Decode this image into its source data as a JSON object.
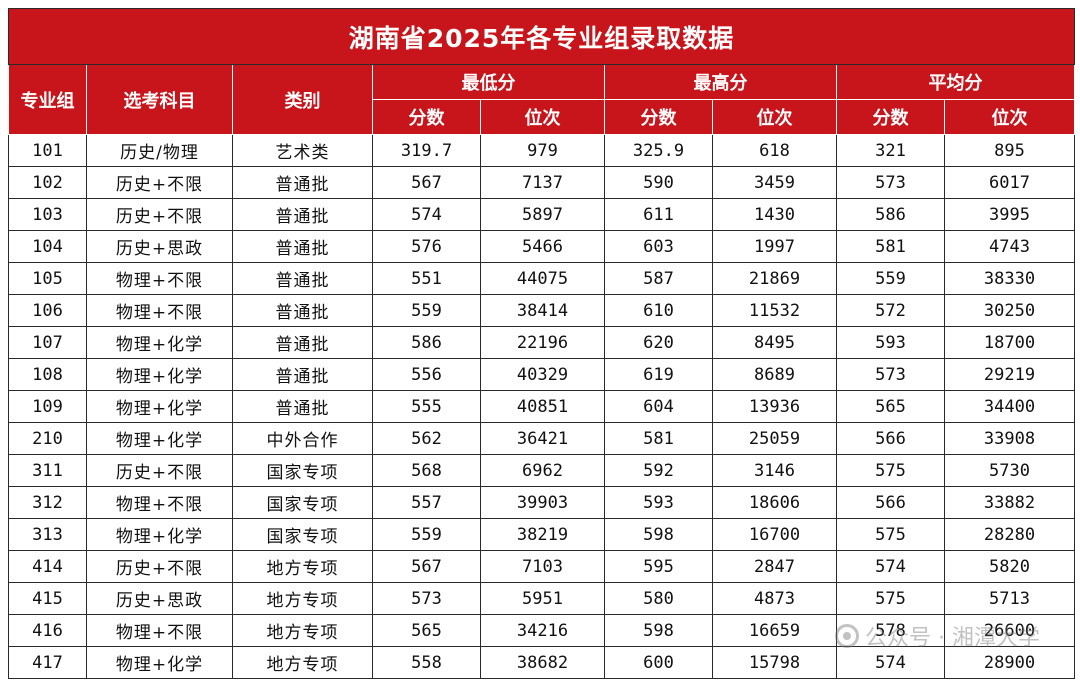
{
  "title": "湖南省2025年各专业组录取数据",
  "headers": {
    "group": "专业组",
    "subjects": "选考科目",
    "category": "类别",
    "min": "最低分",
    "max": "最高分",
    "avg": "平均分",
    "score": "分数",
    "rank": "位次"
  },
  "rows": [
    {
      "group": "101",
      "subjects": "历史/物理",
      "category": "艺术类",
      "min_score": "319.7",
      "min_rank": "979",
      "max_score": "325.9",
      "max_rank": "618",
      "avg_score": "321",
      "avg_rank": "895"
    },
    {
      "group": "102",
      "subjects": "历史+不限",
      "category": "普通批",
      "min_score": "567",
      "min_rank": "7137",
      "max_score": "590",
      "max_rank": "3459",
      "avg_score": "573",
      "avg_rank": "6017"
    },
    {
      "group": "103",
      "subjects": "历史+不限",
      "category": "普通批",
      "min_score": "574",
      "min_rank": "5897",
      "max_score": "611",
      "max_rank": "1430",
      "avg_score": "586",
      "avg_rank": "3995"
    },
    {
      "group": "104",
      "subjects": "历史+思政",
      "category": "普通批",
      "min_score": "576",
      "min_rank": "5466",
      "max_score": "603",
      "max_rank": "1997",
      "avg_score": "581",
      "avg_rank": "4743"
    },
    {
      "group": "105",
      "subjects": "物理+不限",
      "category": "普通批",
      "min_score": "551",
      "min_rank": "44075",
      "max_score": "587",
      "max_rank": "21869",
      "avg_score": "559",
      "avg_rank": "38330"
    },
    {
      "group": "106",
      "subjects": "物理+不限",
      "category": "普通批",
      "min_score": "559",
      "min_rank": "38414",
      "max_score": "610",
      "max_rank": "11532",
      "avg_score": "572",
      "avg_rank": "30250"
    },
    {
      "group": "107",
      "subjects": "物理+化学",
      "category": "普通批",
      "min_score": "586",
      "min_rank": "22196",
      "max_score": "620",
      "max_rank": "8495",
      "avg_score": "593",
      "avg_rank": "18700"
    },
    {
      "group": "108",
      "subjects": "物理+化学",
      "category": "普通批",
      "min_score": "556",
      "min_rank": "40329",
      "max_score": "619",
      "max_rank": "8689",
      "avg_score": "573",
      "avg_rank": "29219"
    },
    {
      "group": "109",
      "subjects": "物理+化学",
      "category": "普通批",
      "min_score": "555",
      "min_rank": "40851",
      "max_score": "604",
      "max_rank": "13936",
      "avg_score": "565",
      "avg_rank": "34400"
    },
    {
      "group": "210",
      "subjects": "物理+化学",
      "category": "中外合作",
      "min_score": "562",
      "min_rank": "36421",
      "max_score": "581",
      "max_rank": "25059",
      "avg_score": "566",
      "avg_rank": "33908"
    },
    {
      "group": "311",
      "subjects": "历史+不限",
      "category": "国家专项",
      "min_score": "568",
      "min_rank": "6962",
      "max_score": "592",
      "max_rank": "3146",
      "avg_score": "575",
      "avg_rank": "5730"
    },
    {
      "group": "312",
      "subjects": "物理+不限",
      "category": "国家专项",
      "min_score": "557",
      "min_rank": "39903",
      "max_score": "593",
      "max_rank": "18606",
      "avg_score": "566",
      "avg_rank": "33882"
    },
    {
      "group": "313",
      "subjects": "物理+化学",
      "category": "国家专项",
      "min_score": "559",
      "min_rank": "38219",
      "max_score": "598",
      "max_rank": "16700",
      "avg_score": "575",
      "avg_rank": "28280"
    },
    {
      "group": "414",
      "subjects": "历史+不限",
      "category": "地方专项",
      "min_score": "567",
      "min_rank": "7103",
      "max_score": "595",
      "max_rank": "2847",
      "avg_score": "574",
      "avg_rank": "5820"
    },
    {
      "group": "415",
      "subjects": "历史+思政",
      "category": "地方专项",
      "min_score": "573",
      "min_rank": "5951",
      "max_score": "580",
      "max_rank": "4873",
      "avg_score": "575",
      "avg_rank": "5713"
    },
    {
      "group": "416",
      "subjects": "物理+不限",
      "category": "地方专项",
      "min_score": "565",
      "min_rank": "34216",
      "max_score": "598",
      "max_rank": "16659",
      "avg_score": "578",
      "avg_rank": "26600"
    },
    {
      "group": "417",
      "subjects": "物理+化学",
      "category": "地方专项",
      "min_score": "558",
      "min_rank": "38682",
      "max_score": "600",
      "max_rank": "15798",
      "avg_score": "574",
      "avg_rank": "28900"
    }
  ],
  "watermark": {
    "text": "公众号 · 湘潭大学",
    "icon": "wechat-official-account-icon"
  },
  "colors": {
    "header_red": "#c8141b",
    "header_text": "#ffffff",
    "body_text": "#111111",
    "grid": "#2a2a2a"
  }
}
